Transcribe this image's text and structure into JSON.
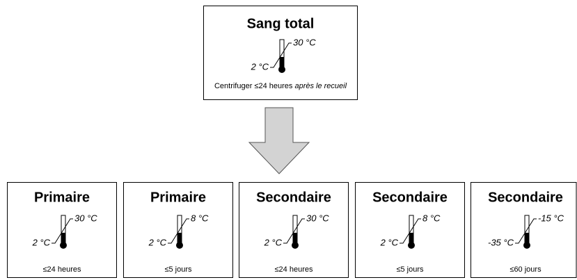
{
  "top": {
    "title": "Sang total",
    "high": "30 °C",
    "low": "2 °C",
    "note": "Centrifuger ≤24 heures",
    "note_italic": "après le recueil"
  },
  "boxes": [
    {
      "title": "Primaire",
      "high": "30 °C",
      "low": "2 °C",
      "duration": "≤24 heures"
    },
    {
      "title": "Primaire",
      "high": "8 °C",
      "low": "2 °C",
      "duration": "≤5 jours"
    },
    {
      "title": "Secondaire",
      "high": "30 °C",
      "low": "2 °C",
      "duration": "≤24 heures"
    },
    {
      "title": "Secondaire",
      "high": "8 °C",
      "low": "2 °C",
      "duration": "≤5 jours"
    },
    {
      "title": "Secondaire",
      "high": "-15 °C",
      "low": "-35 °C",
      "duration": "≤60 jours"
    }
  ]
}
